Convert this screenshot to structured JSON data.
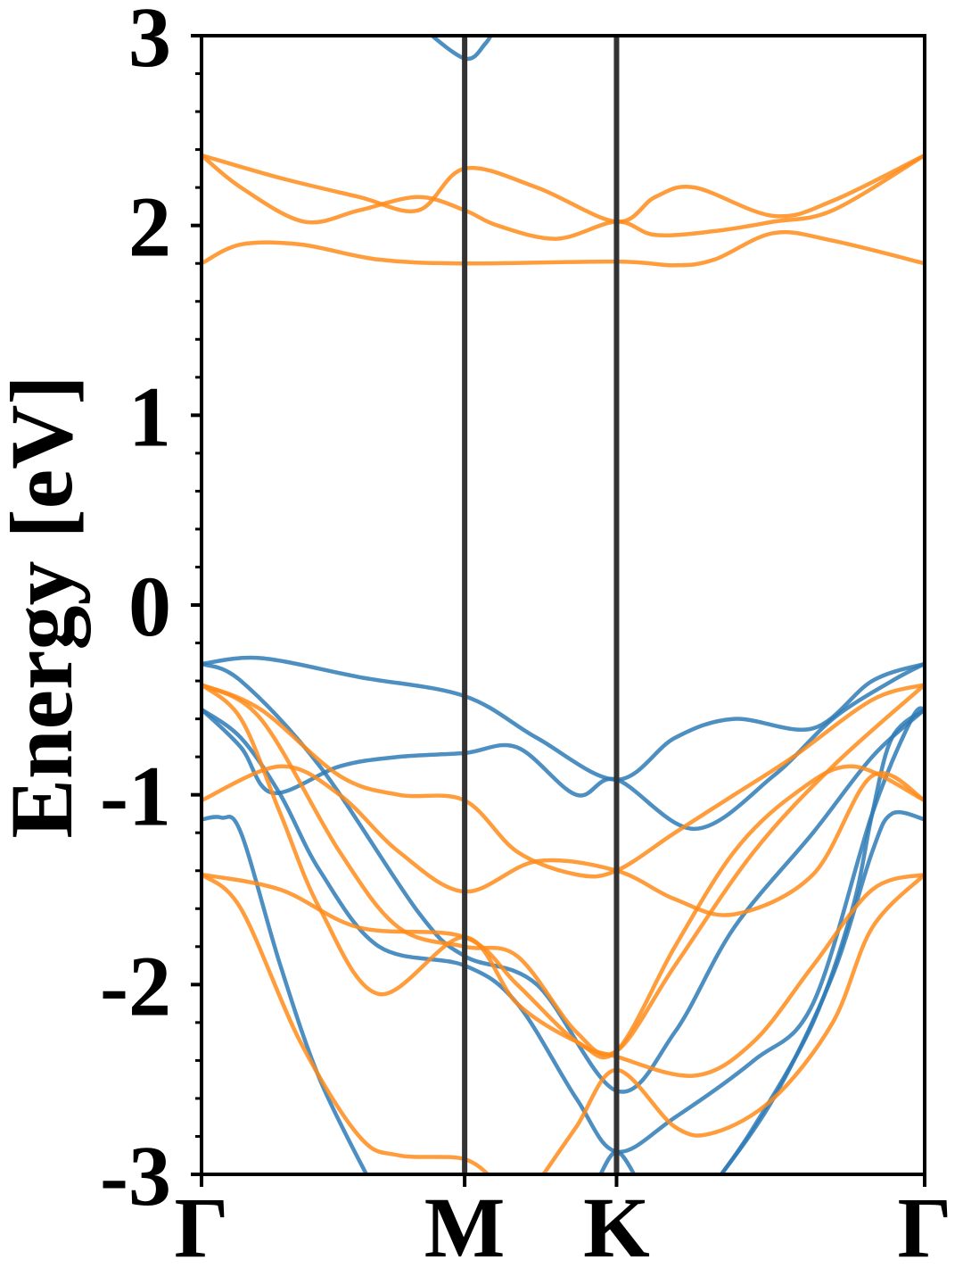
{
  "chart_data": {
    "type": "line",
    "title": "",
    "ylabel": "Energy [eV]",
    "xlabel": "",
    "ylim": [
      -3,
      3
    ],
    "yticks": [
      "-3",
      "-2",
      "-1",
      "0",
      "1",
      "2",
      "3"
    ],
    "xlim": [
      0,
      1.833
    ],
    "k_points": [
      {
        "label": "Γ",
        "x": 0
      },
      {
        "label": "M",
        "x": 0.667
      },
      {
        "label": "K",
        "x": 1.052
      },
      {
        "label": "Γ",
        "x": 1.833
      }
    ],
    "grid": false,
    "legend": "none",
    "colors": {
      "spin_a": "#2f7bb6",
      "spin_b": "#ff8c1a",
      "kpoint_line": "#333333"
    },
    "series": [
      {
        "group": "spin_b",
        "values": [
          [
            0,
            1.8
          ],
          [
            0.1,
            1.9
          ],
          [
            0.25,
            1.9
          ],
          [
            0.45,
            1.82
          ],
          [
            0.667,
            1.8
          ],
          [
            1.052,
            1.81
          ],
          [
            1.2,
            1.79
          ],
          [
            1.3,
            1.82
          ],
          [
            1.45,
            1.96
          ],
          [
            1.6,
            1.92
          ],
          [
            1.833,
            1.8
          ]
        ]
      },
      {
        "group": "spin_b",
        "values": [
          [
            0,
            2.37
          ],
          [
            0.1,
            2.2
          ],
          [
            0.26,
            2.02
          ],
          [
            0.4,
            2.08
          ],
          [
            0.55,
            2.15
          ],
          [
            0.667,
            2.08
          ],
          [
            0.75,
            2.0
          ],
          [
            0.9,
            1.93
          ],
          [
            1.052,
            2.02
          ],
          [
            1.15,
            1.95
          ],
          [
            1.3,
            1.97
          ],
          [
            1.45,
            2.02
          ],
          [
            1.6,
            2.08
          ],
          [
            1.833,
            2.37
          ]
        ]
      },
      {
        "group": "spin_b",
        "values": [
          [
            0,
            2.37
          ],
          [
            0.2,
            2.25
          ],
          [
            0.4,
            2.15
          ],
          [
            0.55,
            2.08
          ],
          [
            0.667,
            2.3
          ],
          [
            0.85,
            2.2
          ],
          [
            1.052,
            2.02
          ],
          [
            1.15,
            2.15
          ],
          [
            1.25,
            2.2
          ],
          [
            1.45,
            2.05
          ],
          [
            1.6,
            2.13
          ],
          [
            1.833,
            2.37
          ]
        ]
      },
      {
        "group": "spin_a",
        "values": [
          [
            0.555,
            3.05
          ],
          [
            0.667,
            2.88
          ],
          [
            0.72,
            2.96
          ],
          [
            0.745,
            3.05
          ]
        ]
      },
      {
        "group": "spin_a",
        "values": [
          [
            0,
            -0.31
          ],
          [
            0.15,
            -0.28
          ],
          [
            0.4,
            -0.38
          ],
          [
            0.667,
            -0.48
          ],
          [
            0.85,
            -0.7
          ],
          [
            1.052,
            -0.92
          ],
          [
            1.2,
            -0.7
          ],
          [
            1.35,
            -0.6
          ],
          [
            1.55,
            -0.65
          ],
          [
            1.7,
            -0.4
          ],
          [
            1.833,
            -0.31
          ]
        ]
      },
      {
        "group": "spin_a",
        "values": [
          [
            0,
            -0.31
          ],
          [
            0.1,
            -0.4
          ],
          [
            0.3,
            -0.85
          ],
          [
            0.55,
            -1.62
          ],
          [
            0.667,
            -1.85
          ],
          [
            0.85,
            -2.0
          ],
          [
            1.052,
            -2.56
          ],
          [
            1.2,
            -2.25
          ],
          [
            1.35,
            -1.7
          ],
          [
            1.55,
            -1.2
          ],
          [
            1.7,
            -0.8
          ],
          [
            1.833,
            -0.55
          ]
        ]
      },
      {
        "group": "spin_a",
        "values": [
          [
            0,
            -0.55
          ],
          [
            0.1,
            -0.75
          ],
          [
            0.18,
            -0.99
          ],
          [
            0.35,
            -0.85
          ],
          [
            0.5,
            -0.8
          ],
          [
            0.667,
            -0.78
          ],
          [
            0.8,
            -0.75
          ],
          [
            0.95,
            -1.0
          ],
          [
            1.052,
            -0.92
          ],
          [
            1.25,
            -1.18
          ],
          [
            1.45,
            -0.9
          ],
          [
            1.6,
            -0.6
          ],
          [
            1.75,
            -0.4
          ],
          [
            1.833,
            -0.31
          ]
        ]
      },
      {
        "group": "spin_a",
        "values": [
          [
            0,
            -0.55
          ],
          [
            0.1,
            -0.7
          ],
          [
            0.2,
            -1.0
          ],
          [
            0.3,
            -1.4
          ],
          [
            0.45,
            -1.8
          ],
          [
            0.667,
            -1.9
          ],
          [
            0.8,
            -2.1
          ],
          [
            0.95,
            -2.6
          ],
          [
            1.052,
            -2.88
          ],
          [
            1.2,
            -2.7
          ],
          [
            1.4,
            -2.4
          ],
          [
            1.55,
            -2.1
          ],
          [
            1.7,
            -1.1
          ],
          [
            1.8,
            -0.6
          ],
          [
            1.833,
            -0.55
          ]
        ]
      },
      {
        "group": "spin_a",
        "values": [
          [
            0,
            -1.13
          ],
          [
            0.05,
            -1.12
          ],
          [
            0.1,
            -1.2
          ],
          [
            0.2,
            -1.9
          ],
          [
            0.3,
            -2.5
          ],
          [
            0.43,
            -3.05
          ]
        ]
      },
      {
        "group": "spin_a",
        "values": [
          [
            1.0,
            -3.05
          ],
          [
            1.052,
            -2.88
          ],
          [
            1.11,
            -3.05
          ]
        ]
      },
      {
        "group": "spin_a",
        "values": [
          [
            1.3,
            -3.05
          ],
          [
            1.45,
            -2.6
          ],
          [
            1.6,
            -1.95
          ],
          [
            1.7,
            -1.3
          ],
          [
            1.75,
            -1.1
          ],
          [
            1.833,
            -1.13
          ]
        ]
      },
      {
        "group": "spin_a",
        "values": [
          [
            1.3,
            -3.05
          ],
          [
            1.4,
            -2.75
          ],
          [
            1.55,
            -2.2
          ],
          [
            1.65,
            -1.6
          ],
          [
            1.7,
            -1.1
          ],
          [
            1.75,
            -0.7
          ],
          [
            1.833,
            -0.55
          ]
        ]
      },
      {
        "group": "spin_b",
        "values": [
          [
            0,
            -0.42
          ],
          [
            0.15,
            -0.55
          ],
          [
            0.35,
            -0.9
          ],
          [
            0.5,
            -1.0
          ],
          [
            0.667,
            -1.03
          ],
          [
            0.8,
            -1.3
          ],
          [
            0.95,
            -1.42
          ],
          [
            1.052,
            -1.4
          ],
          [
            1.2,
            -1.2
          ],
          [
            1.35,
            -1.0
          ],
          [
            1.5,
            -0.8
          ],
          [
            1.7,
            -0.5
          ],
          [
            1.833,
            -0.42
          ]
        ]
      },
      {
        "group": "spin_b",
        "values": [
          [
            0,
            -1.03
          ],
          [
            0.2,
            -0.85
          ],
          [
            0.35,
            -1.0
          ],
          [
            0.5,
            -1.3
          ],
          [
            0.667,
            -1.51
          ],
          [
            0.85,
            -1.35
          ],
          [
            1.052,
            -1.4
          ],
          [
            1.2,
            -1.55
          ],
          [
            1.35,
            -1.63
          ],
          [
            1.55,
            -1.42
          ],
          [
            1.7,
            -0.9
          ],
          [
            1.833,
            -1.03
          ]
        ]
      },
      {
        "group": "spin_b",
        "values": [
          [
            0,
            -0.42
          ],
          [
            0.1,
            -0.6
          ],
          [
            0.2,
            -1.1
          ],
          [
            0.3,
            -1.6
          ],
          [
            0.45,
            -2.05
          ],
          [
            0.667,
            -1.75
          ],
          [
            0.8,
            -2.1
          ],
          [
            0.95,
            -2.3
          ],
          [
            1.052,
            -2.35
          ],
          [
            1.2,
            -1.8
          ],
          [
            1.35,
            -1.3
          ],
          [
            1.5,
            -1.0
          ],
          [
            1.65,
            -0.85
          ],
          [
            1.833,
            -1.03
          ]
        ]
      },
      {
        "group": "spin_b",
        "values": [
          [
            0,
            -1.42
          ],
          [
            0.2,
            -1.5
          ],
          [
            0.4,
            -1.7
          ],
          [
            0.667,
            -1.75
          ],
          [
            0.8,
            -2.0
          ],
          [
            0.95,
            -2.3
          ],
          [
            1.052,
            -2.38
          ],
          [
            1.25,
            -2.48
          ],
          [
            1.4,
            -2.3
          ],
          [
            1.55,
            -1.9
          ],
          [
            1.7,
            -1.5
          ],
          [
            1.833,
            -1.42
          ]
        ]
      },
      {
        "group": "spin_b",
        "values": [
          [
            0,
            -1.42
          ],
          [
            0.1,
            -1.6
          ],
          [
            0.25,
            -2.3
          ],
          [
            0.4,
            -2.8
          ],
          [
            0.5,
            -2.9
          ],
          [
            0.667,
            -2.92
          ],
          [
            0.75,
            -3.05
          ]
        ]
      },
      {
        "group": "spin_b",
        "values": [
          [
            0.85,
            -3.05
          ],
          [
            0.95,
            -2.75
          ],
          [
            1.052,
            -2.45
          ],
          [
            1.2,
            -2.75
          ],
          [
            1.3,
            -2.78
          ],
          [
            1.45,
            -2.6
          ],
          [
            1.6,
            -2.2
          ],
          [
            1.7,
            -1.7
          ],
          [
            1.833,
            -1.42
          ]
        ]
      },
      {
        "group": "spin_b",
        "values": [
          [
            0,
            -0.42
          ],
          [
            0.15,
            -0.6
          ],
          [
            0.35,
            -1.3
          ],
          [
            0.5,
            -1.7
          ],
          [
            0.667,
            -1.8
          ],
          [
            0.8,
            -1.85
          ],
          [
            0.95,
            -2.25
          ],
          [
            1.052,
            -2.35
          ],
          [
            1.2,
            -1.9
          ],
          [
            1.4,
            -1.3
          ],
          [
            1.6,
            -0.85
          ],
          [
            1.833,
            -0.42
          ]
        ]
      }
    ]
  }
}
